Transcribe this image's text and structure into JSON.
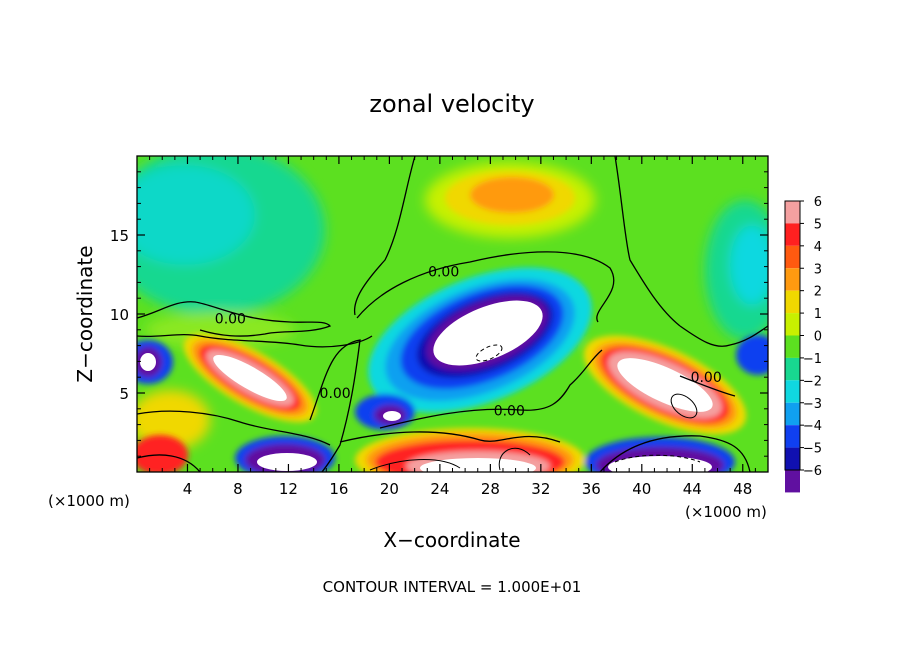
{
  "chart_data": {
    "type": "heatmap",
    "title": "zonal velocity",
    "xlabel": "X−coordinate",
    "ylabel": "Z−coordinate",
    "x_unit": "(×1000 m)",
    "y_unit": "(×1000 m)",
    "xlim": [
      0,
      50
    ],
    "ylim": [
      0,
      20
    ],
    "x_ticks": [
      4,
      8,
      12,
      16,
      20,
      24,
      28,
      32,
      36,
      40,
      44,
      48
    ],
    "y_ticks": [
      5,
      10,
      15
    ],
    "colorbar": {
      "ticks": [
        6,
        5,
        4,
        3,
        2,
        1,
        0,
        -1,
        -2,
        -3,
        -4,
        -5,
        -6
      ],
      "tick_labels": [
        "6",
        "5",
        "4",
        "3",
        "2",
        "1",
        "0",
        "−1",
        "−2",
        "−3",
        "−4",
        "−5",
        "−6"
      ],
      "colors": [
        "#f4a0a0",
        "#ff2020",
        "#ff5a10",
        "#ff9a10",
        "#f0d800",
        "#c8f000",
        "#5ce020",
        "#18d890",
        "#10d8e0",
        "#10a0f0",
        "#1040f0",
        "#1010b0",
        "#6010a0"
      ]
    },
    "contour_interval": "CONTOUR INTERVAL = 1.000E+01",
    "contour_labels": [
      {
        "x": 24.3,
        "z": 12.7,
        "text": "0.00"
      },
      {
        "x": 7.4,
        "z": 9.7,
        "text": "0.00"
      },
      {
        "x": 15.7,
        "z": 5.0,
        "text": "0.00"
      },
      {
        "x": 29.5,
        "z": 3.9,
        "text": "0.00"
      },
      {
        "x": 45.1,
        "z": 6.0,
        "text": "0.00"
      }
    ]
  }
}
